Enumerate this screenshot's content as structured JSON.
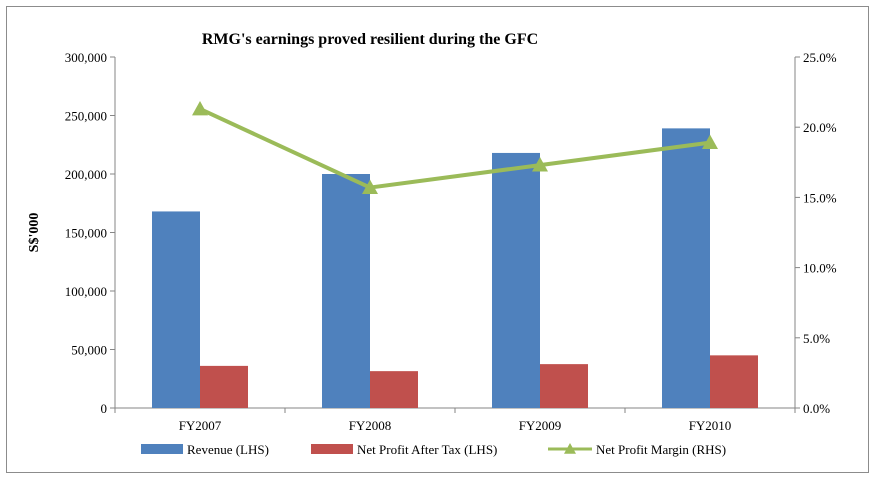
{
  "chart_data": {
    "type": "bar",
    "title": "RMG's earnings proved resilient during the GFC",
    "ylabel": "S$'000",
    "xlabel": "",
    "categories": [
      "FY2007",
      "FY2008",
      "FY2009",
      "FY2010"
    ],
    "ylim": [
      0,
      300000
    ],
    "y_ticks": [
      "0",
      "50,000",
      "100,000",
      "150,000",
      "200,000",
      "250,000",
      "300,000"
    ],
    "y2lim": [
      0,
      25
    ],
    "y2_ticks": [
      "0.0%",
      "5.0%",
      "10.0%",
      "15.0%",
      "20.0%",
      "25.0%"
    ],
    "grid": false,
    "legend_position": "bottom",
    "series": [
      {
        "name": "Revenue (LHS)",
        "type": "bar",
        "axis": "left",
        "color": "#4f81bd",
        "values": [
          168000,
          200000,
          218000,
          239000
        ]
      },
      {
        "name": "Net Profit After Tax (LHS)",
        "type": "bar",
        "axis": "left",
        "color": "#c0504d",
        "values": [
          36000,
          31500,
          37500,
          45000
        ]
      },
      {
        "name": "Net Profit Margin (RHS)",
        "type": "line",
        "marker": "triangle",
        "axis": "right",
        "color": "#9bbb59",
        "values": [
          21.3,
          15.7,
          17.3,
          18.9
        ]
      }
    ]
  }
}
